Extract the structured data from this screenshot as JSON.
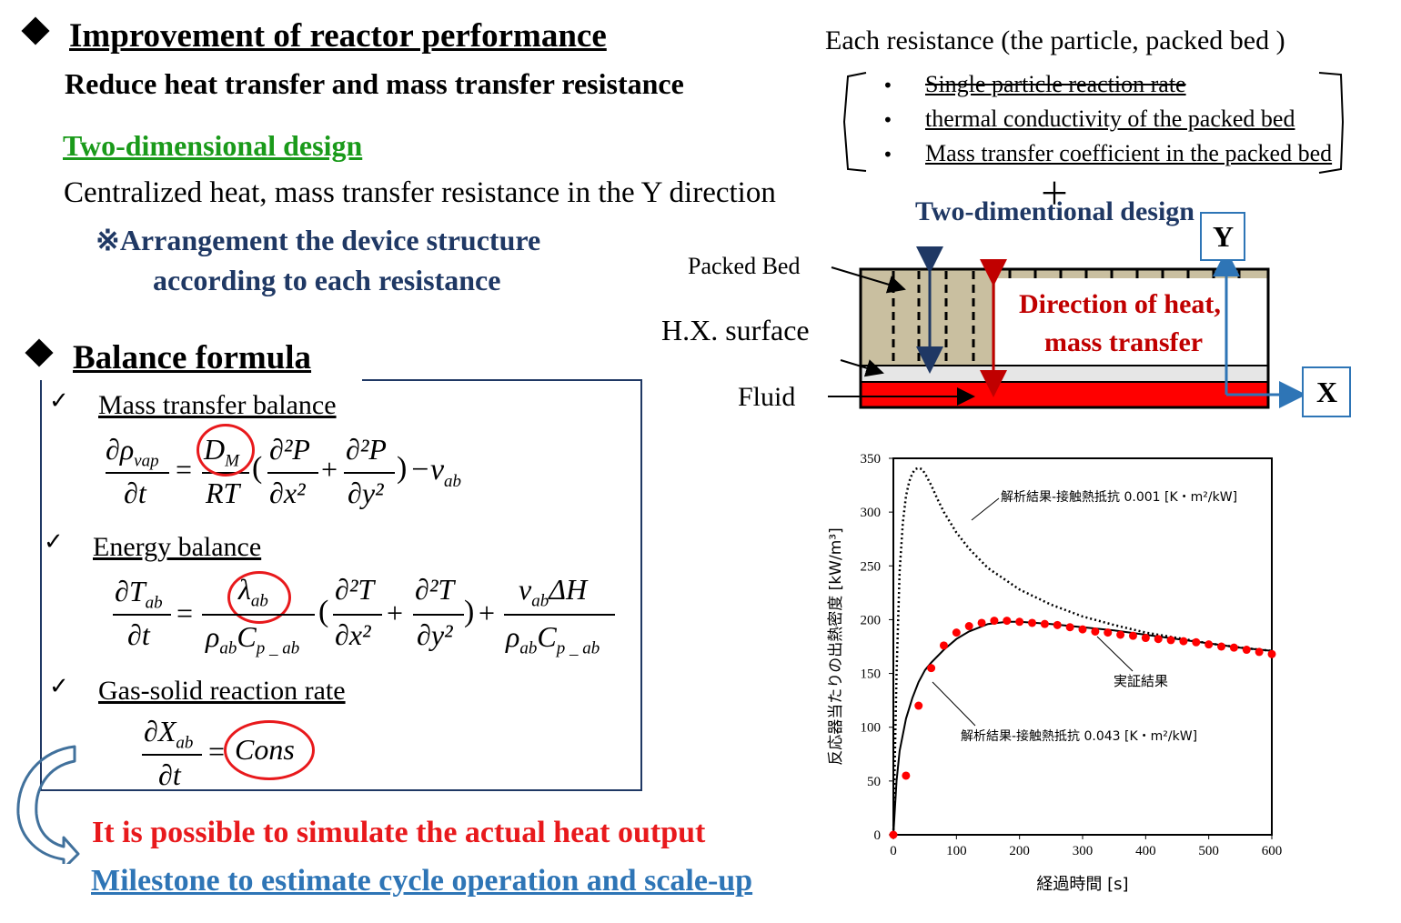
{
  "left": {
    "heading1": "Improvement of reactor performance",
    "subheading1": "Reduce heat transfer and mass transfer resistance",
    "two_dim_title": "Two-dimensional design",
    "centralized": "Centralized heat, mass transfer resistance in the Y direction",
    "arrangement_1": "※Arrangement the device structure",
    "arrangement_2": "according to each resistance",
    "heading2": "Balance formula",
    "eq1_label": "Mass transfer balance",
    "eq2_label": "Energy balance",
    "eq3_label": "Gas-solid reaction rate",
    "conclusion_1": "It is possible to simulate the actual heat output",
    "conclusion_2": "Milestone to estimate cycle operation and scale-up",
    "check_mark": "✓"
  },
  "equations": {
    "eq1": {
      "lhs_num": "∂ρ",
      "lhs_num_sub": "vap",
      "lhs_den": "∂t",
      "eq": "=",
      "c_num": "D",
      "c_num_sub": "M",
      "c_den": "RT",
      "open": "(",
      "t1_num": "∂²P",
      "t1_den": "∂x²",
      "plus": "+",
      "t2_num": "∂²P",
      "t2_den": "∂y²",
      "close": ")",
      "tail": "−ν",
      "tail_sub": "ab"
    },
    "eq2": {
      "lhs_num": "∂T",
      "lhs_num_sub": "ab",
      "lhs_den": "∂t",
      "eq": "=",
      "c_num": "λ",
      "c_num_sub": "ab",
      "c_den": "ρ",
      "c_den_sub": "ab",
      "c_den2": "C",
      "c_den2_sub": "p _ ab",
      "open": "(",
      "t1_num": "∂²T",
      "t1_den": "∂x²",
      "plus": "+",
      "t2_num": "∂²T",
      "t2_den": "∂y²",
      "close": ")",
      "plus2": "+",
      "r_num": "ν",
      "r_num_sub": "ab",
      "r_num2": "ΔH",
      "r_den": "ρ",
      "r_den_sub": "ab",
      "r_den2": "C",
      "r_den2_sub": "p _ ab"
    },
    "eq3": {
      "lhs_num": "∂X",
      "lhs_num_sub": "ab",
      "lhs_den": "∂t",
      "eq": "=",
      "rhs": "Cons"
    }
  },
  "right": {
    "each_resistance": "Each resistance (the particle, packed bed )",
    "bullets": [
      "Single particle reaction rate",
      "thermal conductivity of the packed bed",
      "Mass transfer coefficient in the packed bed"
    ],
    "bullet_char": "•",
    "plus": "＋",
    "two_dim_label": "Two-dimentional design",
    "packed_bed": "Packed Bed",
    "hx_surface": "H.X. surface",
    "fluid": "Fluid",
    "direction_1": "Direction of heat,",
    "direction_2": "mass transfer",
    "axis_y": "Y",
    "axis_x": "X"
  },
  "colors": {
    "green": "#1a9a1a",
    "navy": "#1f3864",
    "red": "#e8191c",
    "blue_link": "#2e75b6",
    "dark_red": "#c00000",
    "tan": "#c9bfa0",
    "box_blue": "#2e75b6"
  },
  "chart_data": {
    "type": "line",
    "xlabel": "経過時間 [s]",
    "ylabel": "反応器当たりの出熱密度 [kW/m³]",
    "xlim": [
      0,
      600
    ],
    "ylim": [
      0,
      350
    ],
    "x_ticks": [
      "0",
      "100",
      "200",
      "300",
      "400",
      "500",
      "600"
    ],
    "y_ticks": [
      "0",
      "50",
      "100",
      "150",
      "200",
      "250",
      "300",
      "350"
    ],
    "grid": false,
    "series": [
      {
        "name": "解析結果-接触熱抵抗 0.001 [K・m²/kW]",
        "style": "dotted",
        "x": [
          0,
          5,
          10,
          15,
          20,
          25,
          30,
          35,
          40,
          45,
          50,
          60,
          70,
          80,
          100,
          120,
          150,
          200,
          250,
          300,
          350,
          400,
          450,
          500,
          550,
          600
        ],
        "y": [
          0,
          150,
          245,
          290,
          315,
          328,
          336,
          340,
          341,
          340,
          336,
          325,
          312,
          300,
          281,
          266,
          248,
          228,
          214,
          203,
          195,
          188,
          183,
          178,
          174,
          171
        ]
      },
      {
        "name": "解析結果-接触熱抵抗 0.043 [K・m²/kW]",
        "style": "solid",
        "x": [
          0,
          5,
          10,
          20,
          30,
          40,
          50,
          60,
          80,
          100,
          120,
          150,
          180,
          200,
          250,
          300,
          350,
          400,
          450,
          500,
          550,
          600
        ],
        "y": [
          0,
          50,
          78,
          108,
          127,
          142,
          153,
          160,
          172,
          182,
          189,
          196,
          198,
          198,
          196,
          193,
          190,
          186,
          182,
          178,
          174,
          171
        ]
      },
      {
        "name": "実証結果",
        "style": "markers",
        "x": [
          0,
          20,
          40,
          60,
          80,
          100,
          120,
          140,
          160,
          180,
          200,
          220,
          240,
          260,
          280,
          300,
          320,
          340,
          360,
          380,
          400,
          420,
          440,
          460,
          480,
          500,
          520,
          540,
          560,
          580,
          600
        ],
        "y": [
          0,
          55,
          120,
          155,
          176,
          188,
          194,
          197,
          199,
          199,
          198,
          197,
          196,
          195,
          193,
          191,
          189,
          188,
          186,
          185,
          183,
          182,
          181,
          180,
          179,
          177,
          175,
          174,
          172,
          170,
          168
        ]
      }
    ],
    "annotations": {
      "dotted_label": "解析結果-接触熱抵抗 0.001 [K・m²/kW]",
      "markers_label": "実証結果",
      "solid_label": "解析結果-接触熱抵抗 0.043 [K・m²/kW]"
    }
  }
}
